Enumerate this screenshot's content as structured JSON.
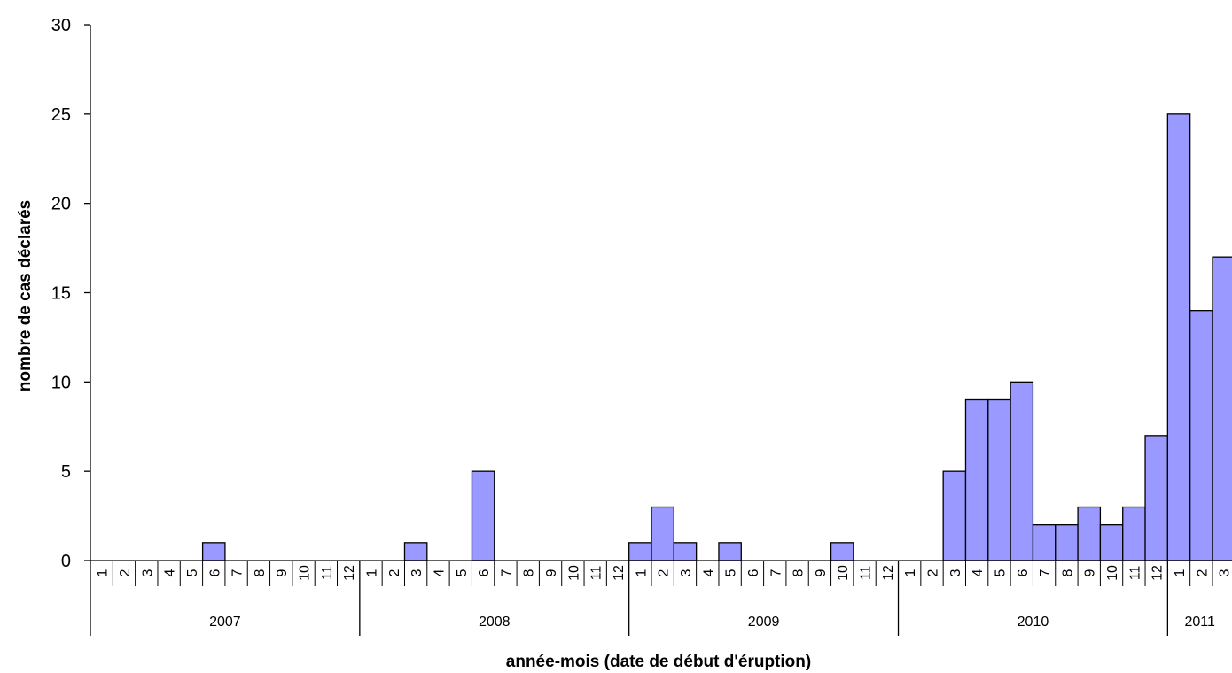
{
  "chart_data": {
    "type": "bar",
    "title": "",
    "xlabel": "année-mois (date de début d'éruption)",
    "ylabel": "nombre de cas déclarés",
    "ylim": [
      0,
      30
    ],
    "yticks": [
      0,
      5,
      10,
      15,
      20,
      25,
      30
    ],
    "bar_color": "#9999ff",
    "grid": false,
    "years": [
      {
        "label": "2007",
        "months": [
          "1",
          "2",
          "3",
          "4",
          "5",
          "6",
          "7",
          "8",
          "9",
          "10",
          "11",
          "12"
        ]
      },
      {
        "label": "2008",
        "months": [
          "1",
          "2",
          "3",
          "4",
          "5",
          "6",
          "7",
          "8",
          "9",
          "10",
          "11",
          "12"
        ]
      },
      {
        "label": "2009",
        "months": [
          "1",
          "2",
          "3",
          "4",
          "5",
          "6",
          "7",
          "8",
          "9",
          "10",
          "11",
          "12"
        ]
      },
      {
        "label": "2010",
        "months": [
          "1",
          "2",
          "3",
          "4",
          "5",
          "6",
          "7",
          "8",
          "9",
          "10",
          "11",
          "12"
        ]
      },
      {
        "label": "2011",
        "months": [
          "1",
          "2",
          "3"
        ]
      }
    ],
    "values": [
      0,
      0,
      0,
      0,
      0,
      1,
      0,
      0,
      0,
      0,
      0,
      0,
      0,
      0,
      1,
      0,
      0,
      5,
      0,
      0,
      0,
      0,
      0,
      0,
      1,
      3,
      1,
      0,
      1,
      0,
      0,
      0,
      0,
      1,
      0,
      0,
      0,
      0,
      5,
      9,
      9,
      10,
      2,
      2,
      3,
      2,
      3,
      7,
      25,
      14,
      17
    ]
  }
}
